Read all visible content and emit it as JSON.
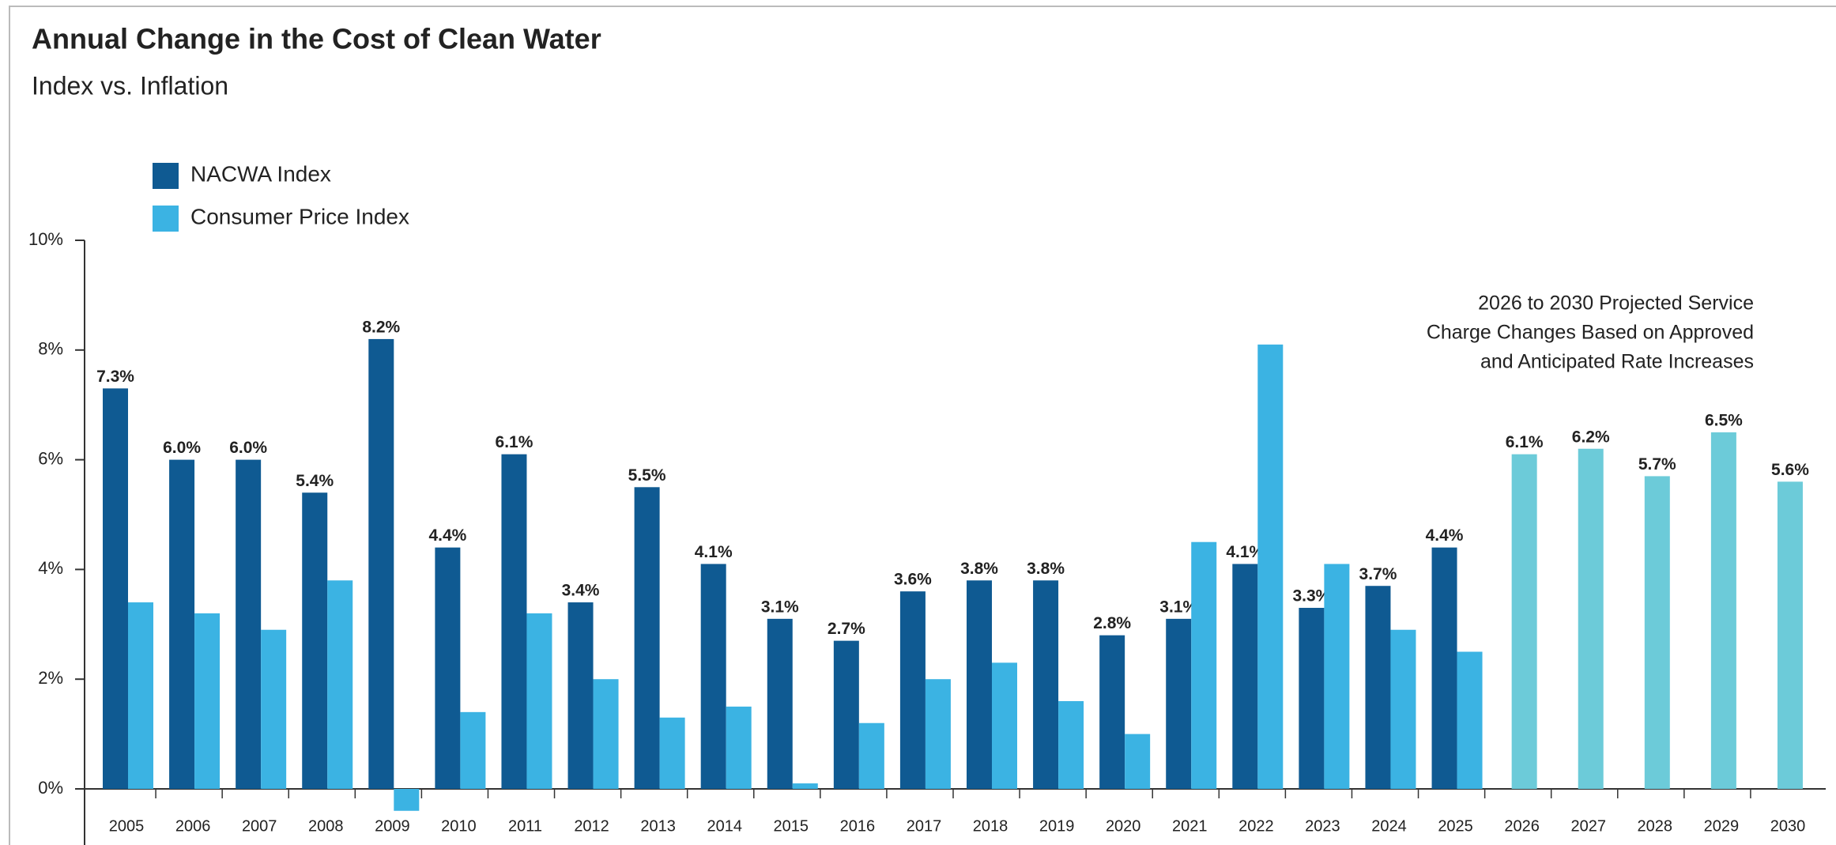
{
  "chart_data": {
    "type": "bar",
    "title": "Annual Change in the Cost of Clean Water",
    "subtitle": "Index vs. Inflation",
    "annotation": [
      "2026 to 2030 Projected Service",
      "Charge Changes Based on Approved",
      "and Anticipated Rate Increases"
    ],
    "categories": [
      "2005",
      "2006",
      "2007",
      "2008",
      "2009",
      "2010",
      "2011",
      "2012",
      "2013",
      "2014",
      "2015",
      "2016",
      "2017",
      "2018",
      "2019",
      "2020",
      "2021",
      "2022",
      "2023",
      "2024",
      "2025",
      "2026",
      "2027",
      "2028",
      "2029",
      "2030"
    ],
    "series": [
      {
        "name": "NACWA Index",
        "color": "#0f5a92",
        "colors": [
          "#0f5a92",
          "#0f5a92",
          "#0f5a92",
          "#0f5a92",
          "#0f5a92",
          "#0f5a92",
          "#0f5a92",
          "#0f5a92",
          "#0f5a92",
          "#0f5a92",
          "#0f5a92",
          "#0f5a92",
          "#0f5a92",
          "#0f5a92",
          "#0f5a92",
          "#0f5a92",
          "#0f5a92",
          "#0f5a92",
          "#0f5a92",
          "#0f5a92",
          "#0f5a92",
          "#6ccbd9",
          "#6ccbd9",
          "#6ccbd9",
          "#6ccbd9",
          "#6ccbd9"
        ],
        "label_colors": [
          "#1b3b5e",
          "#1b3b5e",
          "#1b3b5e",
          "#1b3b5e",
          "#1b3b5e",
          "#1b3b5e",
          "#1b3b5e",
          "#1b3b5e",
          "#1b3b5e",
          "#1b3b5e",
          "#1b3b5e",
          "#1b3b5e",
          "#1b3b5e",
          "#1b3b5e",
          "#1b3b5e",
          "#1b3b5e",
          "#1b3b5e",
          "#1b3b5e",
          "#1b3b5e",
          "#1b3b5e",
          "#1b3b5e",
          "#5cc6d8",
          "#5cc6d8",
          "#5cc6d8",
          "#5cc6d8",
          "#5cc6d8"
        ],
        "values": [
          7.3,
          6.0,
          6.0,
          5.4,
          8.2,
          4.4,
          6.1,
          3.4,
          5.5,
          4.1,
          3.1,
          2.7,
          3.6,
          3.8,
          3.8,
          2.8,
          3.1,
          4.1,
          3.3,
          3.7,
          4.4,
          6.1,
          6.2,
          5.7,
          6.5,
          5.6
        ],
        "value_labels": [
          "7.3%",
          "6.0%",
          "6.0%",
          "5.4%",
          "8.2%",
          "4.4%",
          "6.1%",
          "3.4%",
          "5.5%",
          "4.1%",
          "3.1%",
          "2.7%",
          "3.6%",
          "3.8%",
          "3.8%",
          "2.8%",
          "3.1%",
          "4.1%",
          "3.3%",
          "3.7%",
          "4.4%",
          "6.1%",
          "6.2%",
          "5.7%",
          "6.5%",
          "5.6%"
        ]
      },
      {
        "name": "Consumer Price Index",
        "color": "#3bb3e3",
        "values": [
          3.4,
          3.2,
          2.9,
          3.8,
          -0.4,
          1.4,
          3.2,
          2.0,
          1.3,
          1.5,
          0.1,
          1.2,
          2.0,
          2.3,
          1.6,
          1.0,
          4.5,
          8.1,
          4.1,
          2.9,
          2.5,
          null,
          null,
          null,
          null,
          null
        ]
      }
    ],
    "ylim": [
      -1,
      10
    ],
    "yticks": [
      {
        "value": 0,
        "label": "0%"
      },
      {
        "value": 2,
        "label": "2%"
      },
      {
        "value": 4,
        "label": "4%"
      },
      {
        "value": 6,
        "label": "6%"
      },
      {
        "value": 8,
        "label": "8%"
      },
      {
        "value": 10,
        "label": "10%"
      }
    ],
    "legend": "top-left"
  }
}
